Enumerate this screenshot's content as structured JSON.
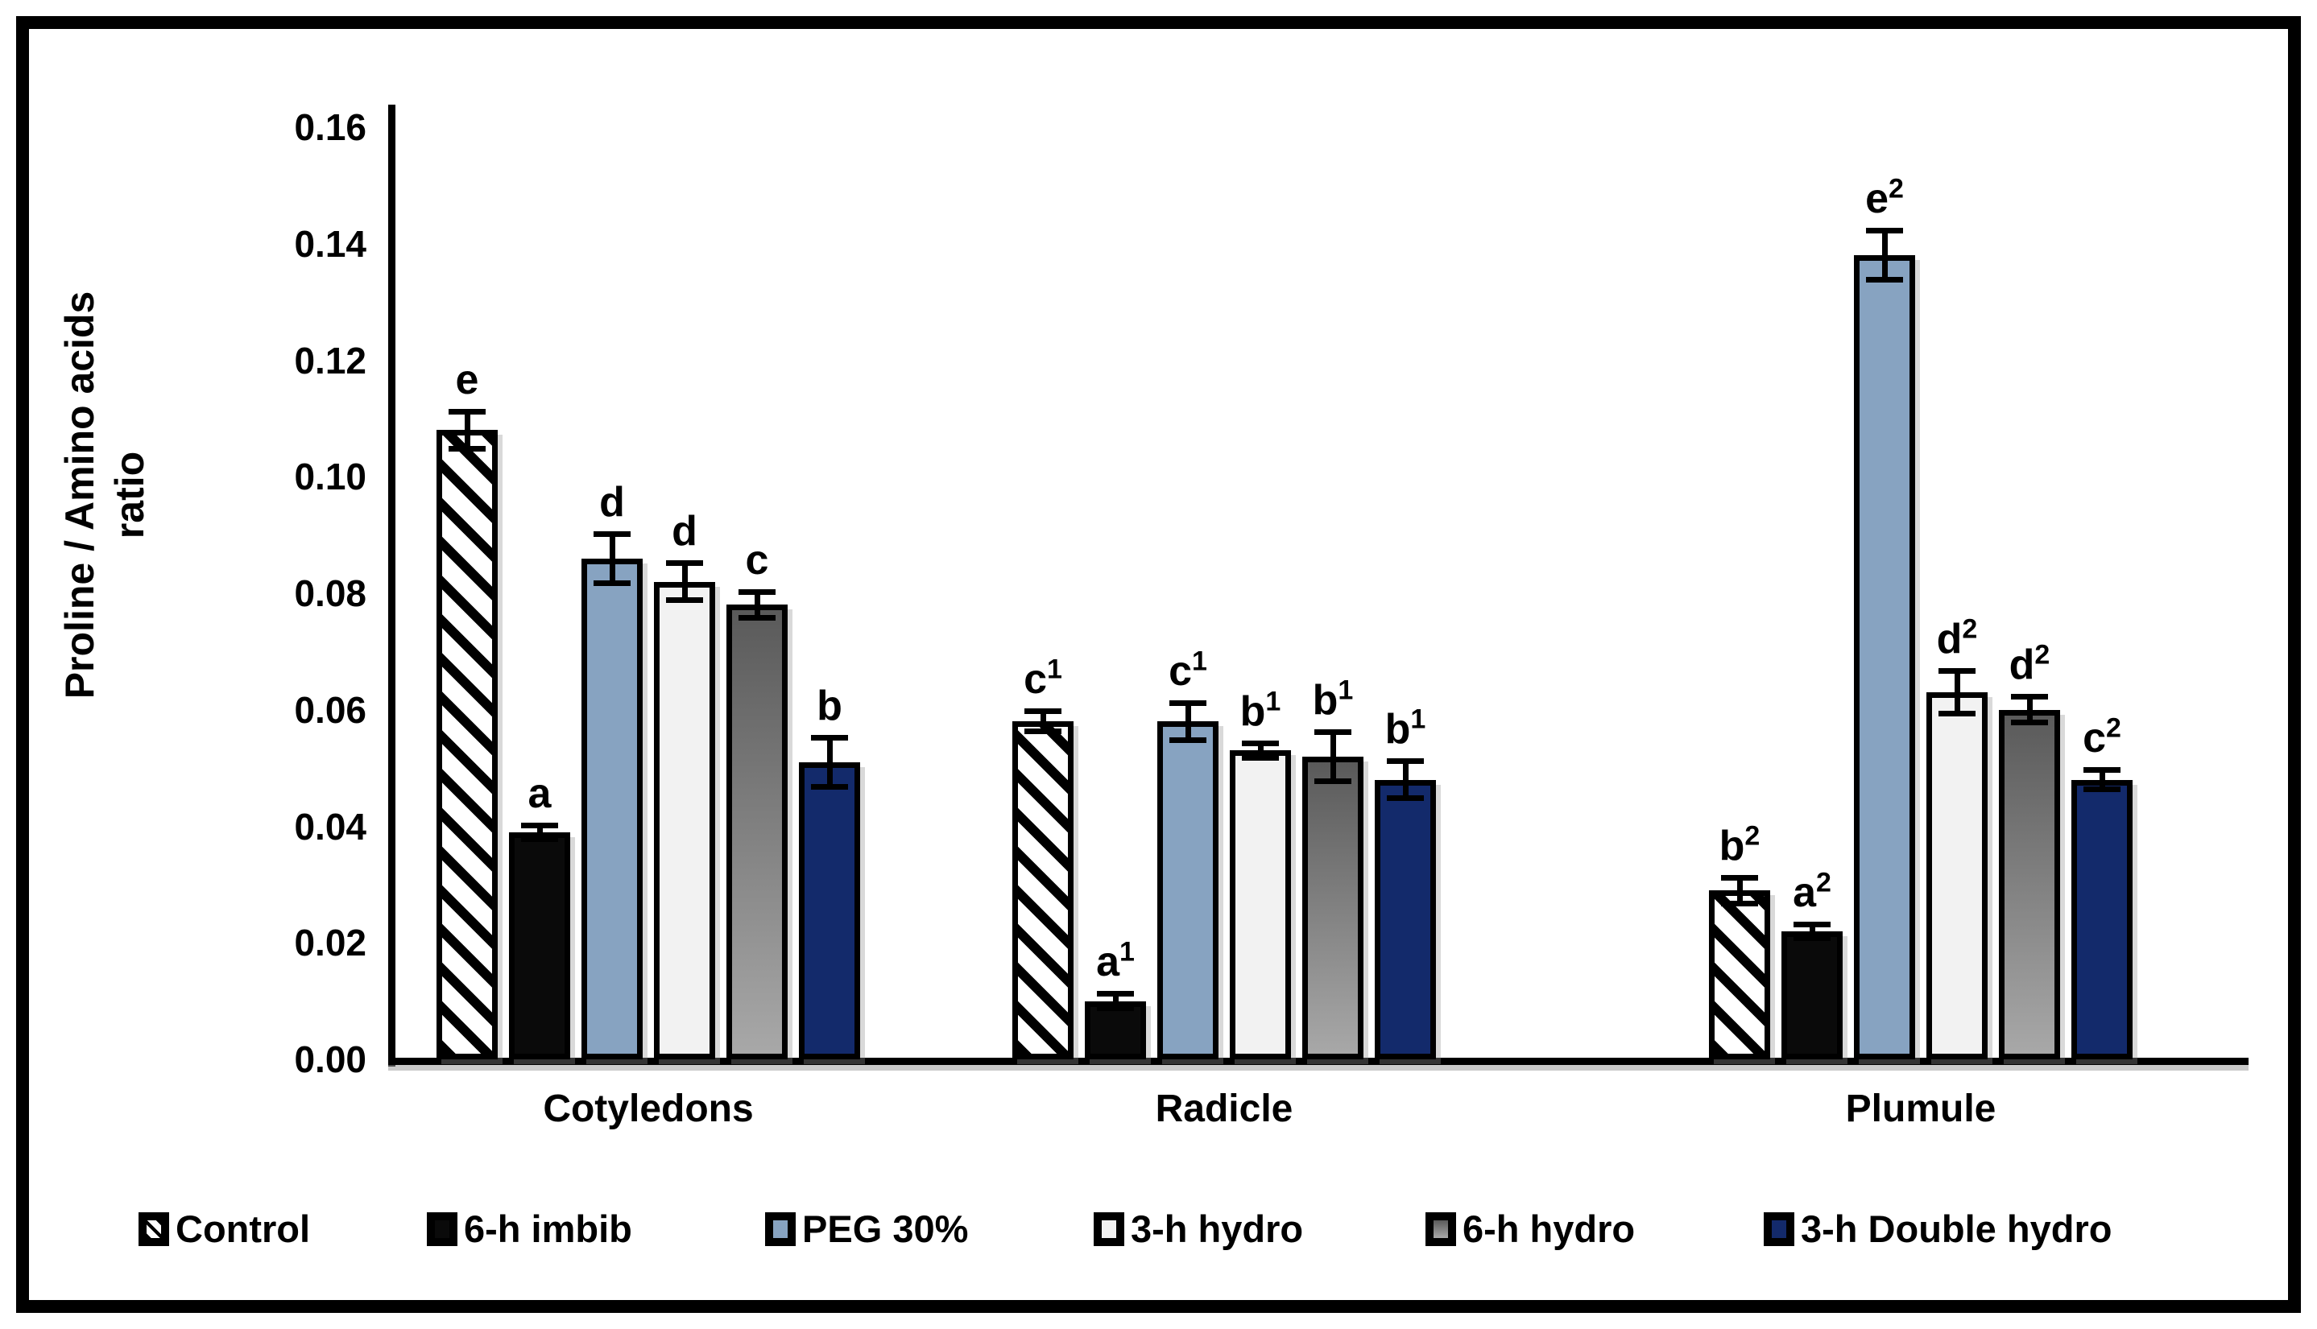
{
  "figure": {
    "ylabel_line1": "Proline / Amino acids",
    "ylabel_line2": "ratio"
  },
  "chart_data": {
    "type": "bar",
    "title": "",
    "xlabel": "",
    "ylabel": "Proline / Amino acids ratio",
    "ylim": [
      0,
      0.16
    ],
    "ytick_step": 0.02,
    "y_tick_labels": [
      "0.16",
      "0.14",
      "0.12",
      "0.10",
      "0.08",
      "0.06",
      "0.04",
      "0.02",
      "0.00"
    ],
    "grid": false,
    "error_bars": true,
    "legend_position": "bottom",
    "categories": [
      "Cotyledons",
      "Radicle",
      "Plumule"
    ],
    "series": [
      {
        "name": "Control",
        "swatch": "hatch",
        "color": "#000000",
        "values": [
          0.108,
          0.058,
          0.029
        ],
        "errors": [
          0.003,
          0.0015,
          0.002
        ],
        "letters": [
          "e",
          "c1",
          "b2"
        ]
      },
      {
        "name": "6-h imbib",
        "swatch": "solid",
        "color": "#0a0a0a",
        "values": [
          0.039,
          0.01,
          0.022
        ],
        "errors": [
          0.001,
          0.001,
          0.001
        ],
        "letters": [
          "a",
          "a1",
          "a2"
        ]
      },
      {
        "name": "PEG 30%",
        "swatch": "solid",
        "color": "#87a3c1",
        "values": [
          0.086,
          0.058,
          0.138
        ],
        "errors": [
          0.004,
          0.003,
          0.004
        ],
        "letters": [
          "d",
          "c1",
          "e2"
        ]
      },
      {
        "name": "3-h hydro",
        "swatch": "solid",
        "color": "#f2f2f2",
        "values": [
          0.082,
          0.053,
          0.063
        ],
        "errors": [
          0.003,
          0.001,
          0.0035
        ],
        "letters": [
          "d",
          "b1",
          "d2"
        ]
      },
      {
        "name": "6-h hydro",
        "swatch": "gray-gradient",
        "color": "#808080",
        "values": [
          0.078,
          0.052,
          0.06
        ],
        "errors": [
          0.002,
          0.004,
          0.002
        ],
        "letters": [
          "c",
          "b1",
          "d2"
        ]
      },
      {
        "name": "3-h Double hydro",
        "swatch": "solid",
        "color": "#132a6b",
        "values": [
          0.051,
          0.048,
          0.048
        ],
        "errors": [
          0.004,
          0.003,
          0.0015
        ],
        "letters": [
          "b",
          "b1",
          "c2"
        ]
      }
    ]
  }
}
